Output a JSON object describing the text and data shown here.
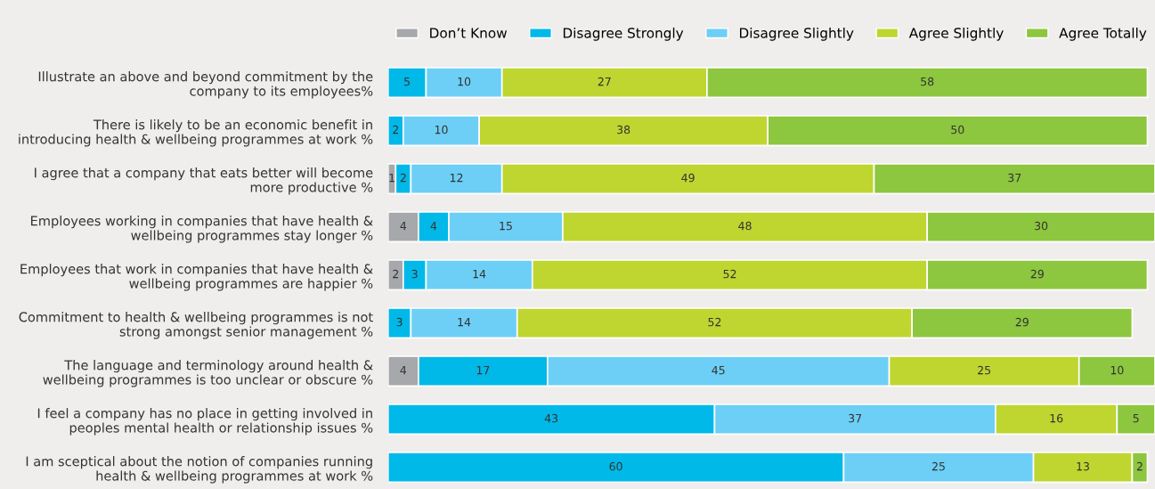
{
  "chart_data": {
    "type": "bar",
    "orientation": "horizontal",
    "stacked": true,
    "data_labels": true,
    "legend": "top",
    "grid": false,
    "tick_labels": "y",
    "categories": [
      "Illustrate an above and beyond commitment by the\ncompany to its employees%",
      "There is likely to be an economic benefit in\nintroducing health & wellbeing programmes at work %",
      "I agree that a company that eats better will become\nmore productive %",
      "Employees working in companies that have health &\nwellbeing programmes stay longer %",
      "Employees that work in companies that have health &\nwellbeing programmes are happier %",
      "Commitment to health & wellbeing programmes is not\nstrong amongst senior management %",
      "The language and terminology around health &\nwellbeing programmes is too unclear or obscure %",
      "I feel a company has no place in getting involved in\npeoples mental health or relationship issues %",
      "I am sceptical about the notion of companies running\nhealth & wellbeing programmes at work %"
    ],
    "series": [
      {
        "name": "Don’t Know",
        "color": "#a6a8ab",
        "values": [
          null,
          null,
          1,
          4,
          2,
          null,
          4,
          null,
          null
        ]
      },
      {
        "name": "Disagree Strongly",
        "color": "#00b9e8",
        "values": [
          5,
          2,
          2,
          4,
          3,
          3,
          17,
          43,
          60
        ]
      },
      {
        "name": "Disagree Slightly",
        "color": "#6dcff6",
        "values": [
          10,
          10,
          12,
          15,
          14,
          14,
          45,
          37,
          25
        ]
      },
      {
        "name": "Agree Slightly",
        "color": "#bed62f",
        "values": [
          27,
          38,
          49,
          48,
          52,
          52,
          25,
          16,
          13
        ]
      },
      {
        "name": "Agree Totally",
        "color": "#8dc63f",
        "values": [
          58,
          50,
          37,
          30,
          29,
          29,
          10,
          5,
          2
        ]
      }
    ]
  }
}
